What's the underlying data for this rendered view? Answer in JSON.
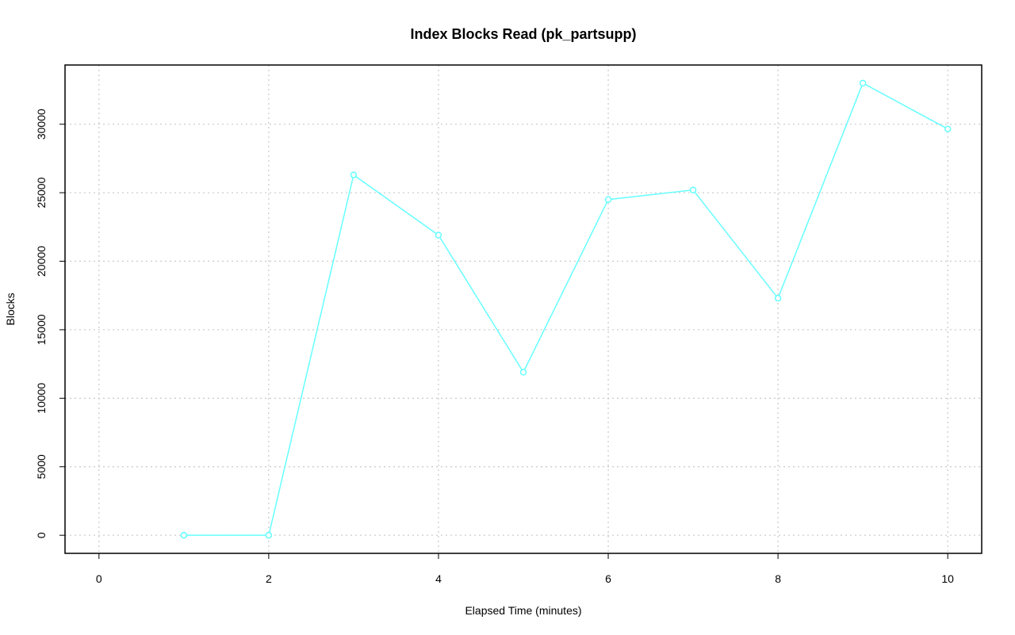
{
  "chart_data": {
    "type": "line",
    "title": "Index Blocks Read (pk_partsupp)",
    "x_label": "Elapsed Time (minutes)",
    "y_label": "Blocks",
    "x": [
      1,
      2,
      3,
      4,
      5,
      6,
      7,
      8,
      9,
      10
    ],
    "values": [
      0,
      0,
      26300,
      21900,
      11900,
      24500,
      25200,
      17300,
      33000,
      29650
    ],
    "color": "#66ffff",
    "xlim": [
      -0.4,
      10.4
    ],
    "xticks": [
      0,
      2,
      4,
      6,
      8,
      10
    ],
    "ylim": [
      -1320,
      34320
    ],
    "yticks": [
      0,
      5000,
      10000,
      15000,
      20000,
      25000,
      30000
    ],
    "grid": true
  }
}
